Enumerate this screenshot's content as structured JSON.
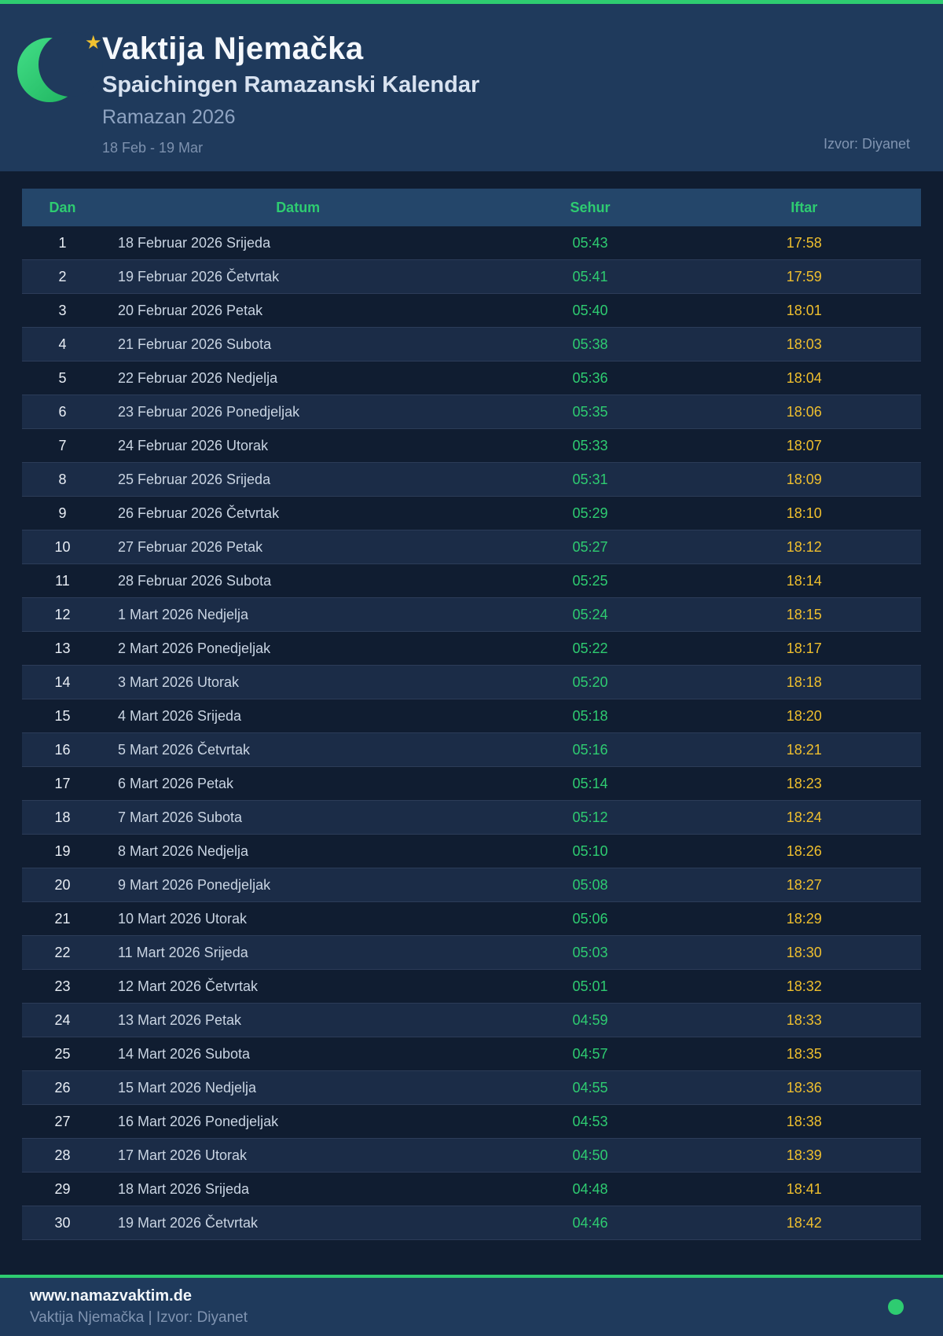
{
  "header": {
    "title": "Vaktija Njemačka",
    "subtitle": "Spaichingen Ramazanski Kalendar",
    "season": "Ramazan 2026",
    "date_range": "18 Feb - 19 Mar",
    "source": "Izvor: Diyanet",
    "moon_icon": "crescent-moon-icon",
    "star_icon": "star-icon",
    "star_glyph": "★"
  },
  "colors": {
    "accent_green": "#2ecc71",
    "accent_gold": "#efbf2e",
    "hero_background": "#1f3a5c",
    "page_background": "#101d31",
    "table_header_background": "#24466a",
    "row_alt_background": "#1b2c47"
  },
  "table": {
    "headers": {
      "dan": "Dan",
      "datum": "Datum",
      "sehur": "Sehur",
      "iftar": "Iftar"
    },
    "rows": [
      {
        "dan": "1",
        "datum": "18 Februar 2026 Srijeda",
        "sehur": "05:43",
        "iftar": "17:58"
      },
      {
        "dan": "2",
        "datum": "19 Februar 2026 Četvrtak",
        "sehur": "05:41",
        "iftar": "17:59"
      },
      {
        "dan": "3",
        "datum": "20 Februar 2026 Petak",
        "sehur": "05:40",
        "iftar": "18:01"
      },
      {
        "dan": "4",
        "datum": "21 Februar 2026 Subota",
        "sehur": "05:38",
        "iftar": "18:03"
      },
      {
        "dan": "5",
        "datum": "22 Februar 2026 Nedjelja",
        "sehur": "05:36",
        "iftar": "18:04"
      },
      {
        "dan": "6",
        "datum": "23 Februar 2026 Ponedjeljak",
        "sehur": "05:35",
        "iftar": "18:06"
      },
      {
        "dan": "7",
        "datum": "24 Februar 2026 Utorak",
        "sehur": "05:33",
        "iftar": "18:07"
      },
      {
        "dan": "8",
        "datum": "25 Februar 2026 Srijeda",
        "sehur": "05:31",
        "iftar": "18:09"
      },
      {
        "dan": "9",
        "datum": "26 Februar 2026 Četvrtak",
        "sehur": "05:29",
        "iftar": "18:10"
      },
      {
        "dan": "10",
        "datum": "27 Februar 2026 Petak",
        "sehur": "05:27",
        "iftar": "18:12"
      },
      {
        "dan": "11",
        "datum": "28 Februar 2026 Subota",
        "sehur": "05:25",
        "iftar": "18:14"
      },
      {
        "dan": "12",
        "datum": "1 Mart 2026 Nedjelja",
        "sehur": "05:24",
        "iftar": "18:15"
      },
      {
        "dan": "13",
        "datum": "2 Mart 2026 Ponedjeljak",
        "sehur": "05:22",
        "iftar": "18:17"
      },
      {
        "dan": "14",
        "datum": "3 Mart 2026 Utorak",
        "sehur": "05:20",
        "iftar": "18:18"
      },
      {
        "dan": "15",
        "datum": "4 Mart 2026 Srijeda",
        "sehur": "05:18",
        "iftar": "18:20"
      },
      {
        "dan": "16",
        "datum": "5 Mart 2026 Četvrtak",
        "sehur": "05:16",
        "iftar": "18:21"
      },
      {
        "dan": "17",
        "datum": "6 Mart 2026 Petak",
        "sehur": "05:14",
        "iftar": "18:23"
      },
      {
        "dan": "18",
        "datum": "7 Mart 2026 Subota",
        "sehur": "05:12",
        "iftar": "18:24"
      },
      {
        "dan": "19",
        "datum": "8 Mart 2026 Nedjelja",
        "sehur": "05:10",
        "iftar": "18:26"
      },
      {
        "dan": "20",
        "datum": "9 Mart 2026 Ponedjeljak",
        "sehur": "05:08",
        "iftar": "18:27"
      },
      {
        "dan": "21",
        "datum": "10 Mart 2026 Utorak",
        "sehur": "05:06",
        "iftar": "18:29"
      },
      {
        "dan": "22",
        "datum": "11 Mart 2026 Srijeda",
        "sehur": "05:03",
        "iftar": "18:30"
      },
      {
        "dan": "23",
        "datum": "12 Mart 2026 Četvrtak",
        "sehur": "05:01",
        "iftar": "18:32"
      },
      {
        "dan": "24",
        "datum": "13 Mart 2026 Petak",
        "sehur": "04:59",
        "iftar": "18:33"
      },
      {
        "dan": "25",
        "datum": "14 Mart 2026 Subota",
        "sehur": "04:57",
        "iftar": "18:35"
      },
      {
        "dan": "26",
        "datum": "15 Mart 2026 Nedjelja",
        "sehur": "04:55",
        "iftar": "18:36"
      },
      {
        "dan": "27",
        "datum": "16 Mart 2026 Ponedjeljak",
        "sehur": "04:53",
        "iftar": "18:38"
      },
      {
        "dan": "28",
        "datum": "17 Mart 2026 Utorak",
        "sehur": "04:50",
        "iftar": "18:39"
      },
      {
        "dan": "29",
        "datum": "18 Mart 2026 Srijeda",
        "sehur": "04:48",
        "iftar": "18:41"
      },
      {
        "dan": "30",
        "datum": "19 Mart 2026 Četvrtak",
        "sehur": "04:46",
        "iftar": "18:42"
      }
    ]
  },
  "footer": {
    "website": "www.namazvaktim.de",
    "tagline": "Vaktija Njemačka | Izvor: Diyanet",
    "dot_icon": "status-dot-icon"
  }
}
